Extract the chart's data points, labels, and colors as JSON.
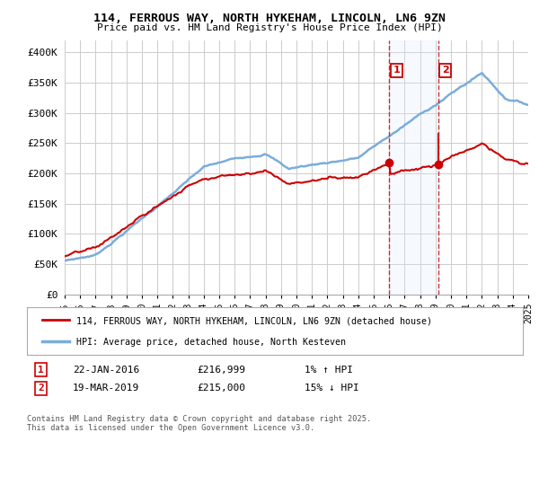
{
  "title_line1": "114, FERROUS WAY, NORTH HYKEHAM, LINCOLN, LN6 9ZN",
  "title_line2": "Price paid vs. HM Land Registry's House Price Index (HPI)",
  "ylim": [
    0,
    420000
  ],
  "yticks": [
    0,
    50000,
    100000,
    150000,
    200000,
    250000,
    300000,
    350000,
    400000
  ],
  "ytick_labels": [
    "£0",
    "£50K",
    "£100K",
    "£150K",
    "£200K",
    "£250K",
    "£300K",
    "£350K",
    "£400K"
  ],
  "hpi_color": "#7aaddb",
  "price_color": "#cc0000",
  "marker1_label": "22-JAN-2016",
  "marker1_price": "£216,999",
  "marker1_hpi": "1% ↑ HPI",
  "marker2_label": "19-MAR-2019",
  "marker2_price": "£215,000",
  "marker2_hpi": "15% ↓ HPI",
  "legend_line1": "114, FERROUS WAY, NORTH HYKEHAM, LINCOLN, LN6 9ZN (detached house)",
  "legend_line2": "HPI: Average price, detached house, North Kesteven",
  "footnote": "Contains HM Land Registry data © Crown copyright and database right 2025.\nThis data is licensed under the Open Government Licence v3.0.",
  "bg_color": "#ffffff",
  "grid_color": "#cccccc",
  "shade_color": "#ddeeff"
}
